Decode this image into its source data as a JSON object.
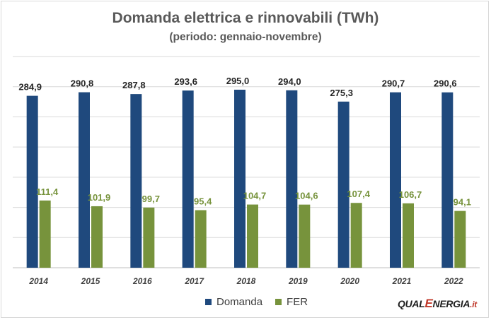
{
  "chart_data": {
    "type": "bar",
    "title": "Domanda elettrica e rinnovabili (TWh)",
    "subtitle": "(periodo: gennaio-novembre)",
    "categories": [
      "2014",
      "2015",
      "2016",
      "2017",
      "2018",
      "2019",
      "2020",
      "2021",
      "2022"
    ],
    "series": [
      {
        "name": "Domanda",
        "color": "#1f497d",
        "values": [
          284.9,
          290.8,
          287.8,
          293.6,
          295.0,
          294.0,
          275.3,
          290.7,
          290.6
        ],
        "labels": [
          "284,9",
          "290,8",
          "287,8",
          "293,6",
          "295,0",
          "294,0",
          "275,3",
          "290,7",
          "290,6"
        ]
      },
      {
        "name": "FER",
        "color": "#77933c",
        "values": [
          111.4,
          101.9,
          99.7,
          95.4,
          104.7,
          104.6,
          107.4,
          106.7,
          94.1
        ],
        "labels": [
          "111,4",
          "101,9",
          "99,7",
          "95,4",
          "104,7",
          "104,6",
          "107,4",
          "106,7",
          "94,1"
        ]
      }
    ],
    "ylim": [
      0,
      350
    ],
    "grid": true,
    "legend": "bottom"
  },
  "logo": {
    "part1": "QUAL",
    "part2": "E",
    "part3": "NERGIA",
    "part4": ".it"
  }
}
